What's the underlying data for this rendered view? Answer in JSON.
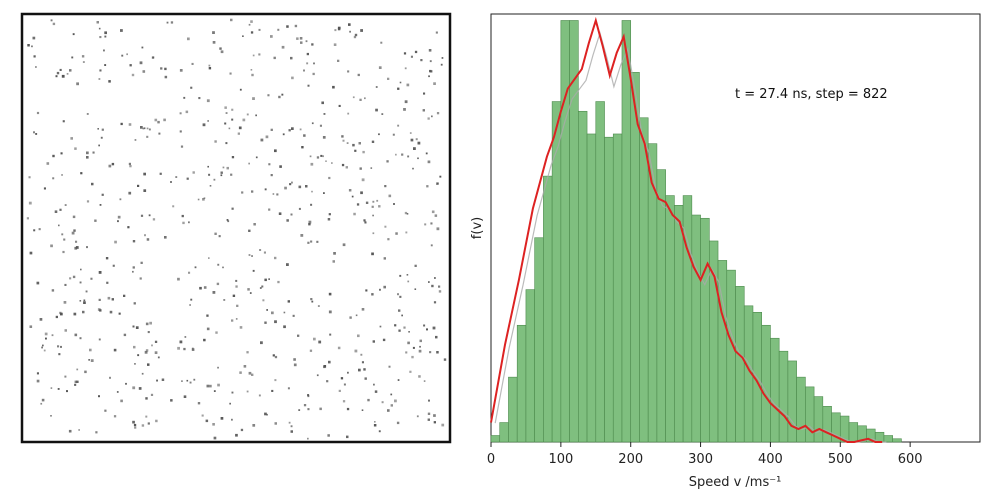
{
  "chart_data": [
    {
      "type": "scatter",
      "panel": "particle-box",
      "description_visible": "simulation box of particles",
      "frame_color": "#111111",
      "particle_color": "#555555",
      "axes_visible": false,
      "particle_count_drawn": 700
    },
    {
      "type": "bar",
      "panel": "speed-distribution",
      "annotation": "t = 27.4 ns, step = 822",
      "xlabel": "Speed v /ms⁻¹",
      "ylabel": "f(v)",
      "xlim": [
        0,
        700
      ],
      "x_ticks": [
        0,
        100,
        200,
        300,
        400,
        500,
        600
      ],
      "y_ticks_visible": false,
      "bar_color": "#7fbf7f",
      "bar_edge_color": "#4d8a4d",
      "line_color": "#dd2222",
      "ghost_line_color": "#aaaaaa",
      "bin_width": 12.5,
      "bin_start": 0,
      "histogram": [
        0.02,
        0.06,
        0.2,
        0.36,
        0.47,
        0.63,
        0.82,
        1.05,
        1.3,
        1.3,
        1.02,
        0.95,
        1.05,
        0.94,
        0.95,
        1.3,
        1.14,
        1.0,
        0.92,
        0.84,
        0.76,
        0.73,
        0.76,
        0.7,
        0.69,
        0.62,
        0.56,
        0.53,
        0.48,
        0.42,
        0.4,
        0.36,
        0.32,
        0.28,
        0.25,
        0.2,
        0.17,
        0.14,
        0.11,
        0.09,
        0.08,
        0.06,
        0.05,
        0.04,
        0.03,
        0.02,
        0.01,
        0.0,
        0.0,
        0.0,
        0.0,
        0.0,
        0.0,
        0.0,
        0.0,
        0.0
      ],
      "series": [
        {
          "x": [
            0,
            20,
            40,
            60,
            80,
            90,
            100,
            110,
            120,
            130,
            140,
            150,
            160,
            170,
            180,
            190,
            200,
            210,
            220,
            230,
            240,
            250,
            260,
            270,
            280,
            290,
            300,
            310,
            320,
            330,
            340,
            350,
            360,
            370,
            380,
            390,
            400,
            410,
            420,
            430,
            440,
            450,
            460,
            470,
            480,
            490,
            500,
            510,
            520,
            530,
            540,
            550,
            560
          ],
          "y": [
            0.06,
            0.3,
            0.5,
            0.72,
            0.88,
            0.94,
            1.02,
            1.09,
            1.12,
            1.15,
            1.23,
            1.3,
            1.22,
            1.13,
            1.2,
            1.25,
            1.12,
            0.98,
            0.92,
            0.8,
            0.75,
            0.74,
            0.7,
            0.68,
            0.6,
            0.54,
            0.5,
            0.55,
            0.51,
            0.4,
            0.33,
            0.28,
            0.26,
            0.22,
            0.19,
            0.15,
            0.12,
            0.1,
            0.08,
            0.05,
            0.04,
            0.05,
            0.03,
            0.04,
            0.03,
            0.02,
            0.01,
            0.0,
            0.0,
            0.005,
            0.01,
            0.0,
            0.0
          ]
        }
      ]
    }
  ]
}
